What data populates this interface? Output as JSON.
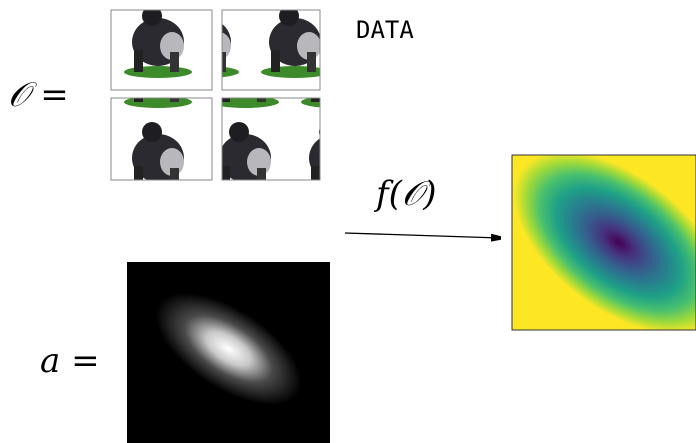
{
  "labels": {
    "observations": "𝒪 =",
    "data": "DATA",
    "function": "f(𝒪)",
    "attention": "a ="
  }
}
